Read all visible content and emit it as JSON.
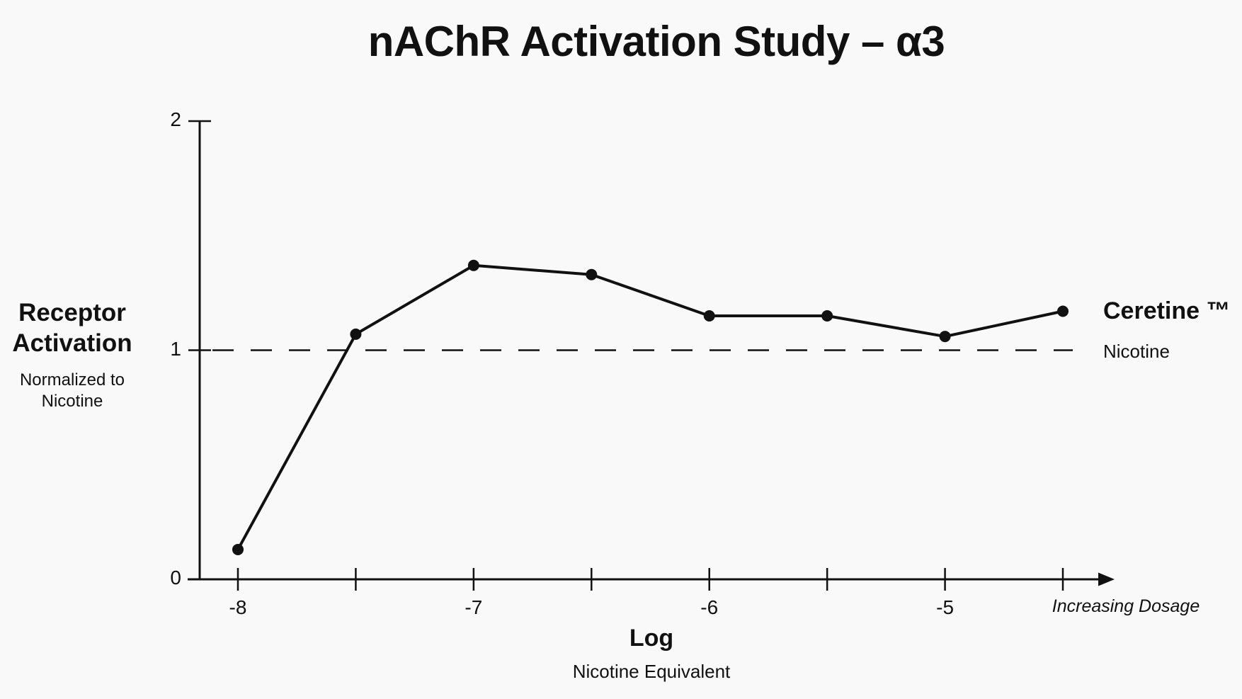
{
  "chart_data": {
    "type": "line",
    "title": "nAChR Activation Study – α3",
    "ylabel": "Receptor Activation",
    "ylabel_sub": "Normalized to Nicotine",
    "xlabel": "Log",
    "xlabel_sub": "Nicotine Equivalent",
    "x_annotation": "Increasing Dosage",
    "background": "#f9f9f9",
    "ink_color": "#111111",
    "grid": false,
    "ylim": [
      0,
      2
    ],
    "yticks": [
      0,
      1,
      2
    ],
    "xticks": [
      {
        "value": -8,
        "label": "-8"
      },
      {
        "value": -7.5,
        "label": ""
      },
      {
        "value": -7,
        "label": "-7"
      },
      {
        "value": -6.5,
        "label": ""
      },
      {
        "value": -6,
        "label": "-6"
      },
      {
        "value": -5.5,
        "label": ""
      },
      {
        "value": -5,
        "label": "-5"
      },
      {
        "value": -4.5,
        "label": ""
      }
    ],
    "series": [
      {
        "name": "Ceretine ™",
        "marker": "circle",
        "color": "#111111",
        "x": [
          -8,
          -7.5,
          -7,
          -6.5,
          -6,
          -5.5,
          -5,
          -4.5
        ],
        "values": [
          0.13,
          1.07,
          1.37,
          1.33,
          1.15,
          1.15,
          1.06,
          1.17
        ]
      }
    ],
    "reference_line": {
      "label": "Nicotine",
      "value": 1,
      "style": "dashed",
      "color": "#111111"
    },
    "legend_position": "right"
  }
}
